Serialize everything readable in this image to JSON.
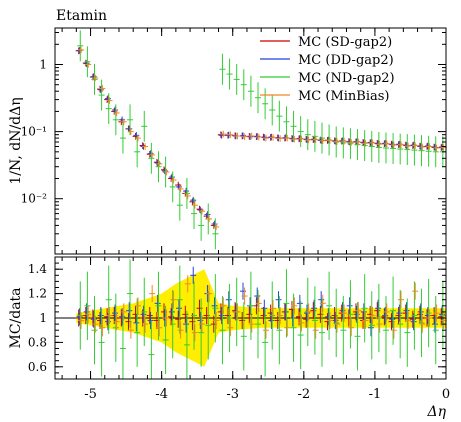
{
  "header": {
    "title": "Etamin"
  },
  "legend": {
    "placement": "top-right",
    "entries": [
      {
        "label": "MC (SD-gap2)",
        "color": "#cc0000"
      },
      {
        "label": "MC (DD-gap2)",
        "color": "#2244dd"
      },
      {
        "label": "MC (ND-gap2)",
        "color": "#33cc33"
      },
      {
        "label": "MC (MinBias)",
        "color": "#ee8822"
      }
    ]
  },
  "chart_data": [
    {
      "type": "scatter",
      "ylabel": "1/N, dN/dΔη",
      "yscale": "log",
      "xlim": [
        -5.5,
        0
      ],
      "ylim": [
        0.0015,
        3.5
      ],
      "y_ticks": [
        {
          "value": 1,
          "label": "1"
        },
        {
          "value": 0.1,
          "label": "10⁻¹"
        },
        {
          "value": 0.01,
          "label": "10⁻²"
        }
      ],
      "series": [
        {
          "name": "MC (SD-gap2)",
          "color": "#cc0000",
          "x": [
            -5.15,
            -5.05,
            -4.95,
            -4.85,
            -4.75,
            -4.65,
            -4.55,
            -4.45,
            -4.35,
            -4.25,
            -4.15,
            -4.05,
            -3.95,
            -3.85,
            -3.75,
            -3.65,
            -3.55,
            -3.45,
            -3.35,
            -3.25,
            -3.15,
            -3.05,
            -2.95,
            -2.85,
            -2.75,
            -2.65,
            -2.55,
            -2.45,
            -2.35,
            -2.25,
            -2.15,
            -2.05,
            -1.95,
            -1.85,
            -1.75,
            -1.65,
            -1.55,
            -1.45,
            -1.35,
            -1.25,
            -1.15,
            -1.05,
            -0.95,
            -0.85,
            -0.75,
            -0.65,
            -0.55,
            -0.45,
            -0.35,
            -0.25,
            -0.15,
            -0.05
          ],
          "y": [
            1.6,
            1.05,
            0.65,
            0.43,
            0.3,
            0.2,
            0.14,
            0.11,
            0.085,
            0.062,
            0.046,
            0.035,
            0.027,
            0.02,
            0.016,
            0.012,
            0.009,
            0.007,
            0.0055,
            0.004,
            0.09,
            0.088,
            0.087,
            0.086,
            0.085,
            0.084,
            0.083,
            0.082,
            0.081,
            0.08,
            0.079,
            0.078,
            0.077,
            0.076,
            0.075,
            0.074,
            0.073,
            0.072,
            0.071,
            0.07,
            0.069,
            0.068,
            0.067,
            0.066,
            0.065,
            0.064,
            0.063,
            0.062,
            0.061,
            0.06,
            0.059,
            0.058
          ],
          "ratio": [
            1.0,
            1.02,
            1.0,
            0.98,
            1.01,
            1.02,
            1.0,
            0.97,
            1.03,
            1.0,
            1.02,
            0.98,
            1.05,
            1.01,
            0.99,
            1.03,
            0.97,
            1.08,
            1.02,
            0.95,
            1.05,
            1.02,
            1.06,
            0.98,
            1.03,
            1.1,
            1.02,
            1.04,
            0.98,
            1.05,
            1.07,
            1.01,
            0.99,
            1.06,
            1.03,
            0.97,
            1.02,
            1.04,
            1.0,
            1.05,
            0.98,
            1.03,
            1.06,
            1.01,
            0.97,
            1.02,
            1.04,
            0.99,
            1.03,
            1.0,
            1.02,
            1.01
          ]
        },
        {
          "name": "MC (DD-gap2)",
          "color": "#2244dd",
          "x": [
            -5.15,
            -5.05,
            -4.95,
            -4.85,
            -4.75,
            -4.65,
            -4.55,
            -4.45,
            -4.35,
            -4.25,
            -4.15,
            -4.05,
            -3.95,
            -3.85,
            -3.75,
            -3.65,
            -3.55,
            -3.45,
            -3.35,
            -3.25,
            -3.15,
            -3.05,
            -2.95,
            -2.85,
            -2.75,
            -2.65,
            -2.55,
            -2.45,
            -2.35,
            -2.25,
            -2.15,
            -2.05,
            -1.95,
            -1.85,
            -1.75,
            -1.65,
            -1.55,
            -1.45,
            -1.35,
            -1.25,
            -1.15,
            -1.05,
            -0.95,
            -0.85,
            -0.75,
            -0.65,
            -0.55,
            -0.45,
            -0.35,
            -0.25,
            -0.15,
            -0.05
          ],
          "y": [
            1.62,
            1.03,
            0.66,
            0.42,
            0.31,
            0.21,
            0.15,
            0.11,
            0.088,
            0.06,
            0.047,
            0.034,
            0.026,
            0.021,
            0.015,
            0.013,
            0.0095,
            0.0068,
            0.0058,
            0.0042,
            0.088,
            0.089,
            0.086,
            0.087,
            0.084,
            0.085,
            0.082,
            0.083,
            0.08,
            0.081,
            0.078,
            0.079,
            0.076,
            0.077,
            0.074,
            0.075,
            0.072,
            0.073,
            0.07,
            0.071,
            0.068,
            0.069,
            0.066,
            0.067,
            0.064,
            0.065,
            0.062,
            0.063,
            0.06,
            0.061,
            0.058,
            0.059
          ],
          "ratio": [
            1.01,
            1.05,
            0.99,
            1.02,
            0.97,
            1.04,
            1.01,
            1.06,
            0.96,
            1.03,
            0.98,
            1.12,
            1.0,
            1.05,
            1.08,
            0.95,
            1.35,
            0.98,
            1.2,
            1.1,
            1.02,
            1.15,
            1.05,
            1.22,
            1.1,
            1.18,
            1.08,
            0.98,
            1.15,
            1.05,
            1.0,
            1.12,
            1.04,
            1.08,
            1.15,
            1.01,
            0.98,
            1.06,
            1.1,
            1.03,
            1.05,
            0.92,
            1.08,
            1.02,
            0.99,
            1.04,
            1.06,
            0.97,
            1.05,
            1.02,
            0.95,
            1.03
          ]
        },
        {
          "name": "MC (ND-gap2)",
          "color": "#33cc33",
          "x": [
            -5.15,
            -5.05,
            -4.95,
            -4.85,
            -4.75,
            -4.65,
            -4.55,
            -4.45,
            -4.35,
            -4.25,
            -4.15,
            -4.05,
            -3.95,
            -3.85,
            -3.75,
            -3.65,
            -3.55,
            -3.45,
            -3.35,
            -3.25,
            -3.15,
            -3.05,
            -2.95,
            -2.85,
            -2.75,
            -2.65,
            -2.55,
            -2.45,
            -2.35,
            -2.25,
            -2.15,
            -2.05,
            -1.95,
            -1.85,
            -1.75,
            -1.65,
            -1.55,
            -1.45,
            -1.35,
            -1.25,
            -1.15,
            -1.05,
            -0.95,
            -0.85,
            -0.75,
            -0.65,
            -0.55,
            -0.45,
            -0.35,
            -0.25,
            -0.15,
            -0.05
          ],
          "y": [
            1.9,
            1.1,
            0.6,
            0.35,
            0.22,
            0.15,
            0.08,
            0.15,
            0.05,
            0.12,
            0.04,
            0.03,
            0.025,
            0.015,
            0.008,
            0.012,
            0.006,
            0.004,
            0.005,
            0.003,
            0.85,
            0.72,
            0.6,
            0.5,
            0.4,
            0.32,
            0.26,
            0.21,
            0.17,
            0.14,
            0.12,
            0.1,
            0.09,
            0.085,
            0.08,
            0.075,
            0.07,
            0.068,
            0.066,
            0.064,
            0.062,
            0.06,
            0.058,
            0.057,
            0.056,
            0.055,
            0.054,
            0.053,
            0.052,
            0.051,
            0.05,
            0.05
          ],
          "ratio": [
            1.02,
            1.1,
            0.9,
            0.8,
            1.15,
            0.92,
            0.75,
            1.2,
            0.88,
            1.05,
            0.7,
            1.1,
            0.82,
            0.95,
            1.15,
            0.78,
            1.02,
            0.88,
            0.94,
            1.08,
            0.9,
            1.0,
            1.05,
            0.85,
            1.1,
            0.95,
            0.8,
            1.02,
            0.9,
            1.12,
            0.92,
            0.86,
            1.05,
            0.98,
            0.88,
            1.1,
            0.96,
            0.9,
            1.03,
            0.85,
            1.08,
            0.94,
            1.0,
            0.9,
            1.06,
            0.95,
            0.88,
            1.02,
            0.96,
            1.04,
            0.9,
            1.02
          ]
        },
        {
          "name": "MC (MinBias)",
          "color": "#ee8822",
          "x": [
            -5.15,
            -5.05,
            -4.95,
            -4.85,
            -4.75,
            -4.65,
            -4.55,
            -4.45,
            -4.35,
            -4.25,
            -4.15,
            -4.05,
            -3.95,
            -3.85,
            -3.75,
            -3.65,
            -3.55,
            -3.45,
            -3.35,
            -3.25,
            -3.15,
            -3.05,
            -2.95,
            -2.85,
            -2.75,
            -2.65,
            -2.55,
            -2.45,
            -2.35,
            -2.25,
            -2.15,
            -2.05,
            -1.95,
            -1.85,
            -1.75,
            -1.65,
            -1.55,
            -1.45,
            -1.35,
            -1.25,
            -1.15,
            -1.05,
            -0.95,
            -0.85,
            -0.75,
            -0.65,
            -0.55,
            -0.45,
            -0.35,
            -0.25,
            -0.15,
            -0.05
          ],
          "y": [
            1.65,
            1.0,
            0.63,
            0.44,
            0.29,
            0.19,
            0.14,
            0.1,
            0.08,
            0.06,
            0.045,
            0.033,
            0.025,
            0.019,
            0.014,
            0.011,
            0.008,
            0.0065,
            0.005,
            0.0038,
            0.092,
            0.09,
            0.086,
            0.084,
            0.086,
            0.083,
            0.08,
            0.082,
            0.079,
            0.08,
            0.077,
            0.078,
            0.075,
            0.076,
            0.073,
            0.074,
            0.071,
            0.072,
            0.069,
            0.07,
            0.067,
            0.068,
            0.065,
            0.066,
            0.063,
            0.064,
            0.061,
            0.062,
            0.059,
            0.06,
            0.057,
            0.058
          ],
          "ratio": [
            0.98,
            1.03,
            0.95,
            0.92,
            1.02,
            0.97,
            1.05,
            0.9,
            1.1,
            0.95,
            1.2,
            0.92,
            1.0,
            1.15,
            0.9,
            1.28,
            0.88,
            0.95,
            1.2,
            0.98,
            1.1,
            0.92,
            1.05,
            1.18,
            0.95,
            1.12,
            0.9,
            1.08,
            1.02,
            0.92,
            1.1,
            0.96,
            1.05,
            0.9,
            1.12,
            0.98,
            0.95,
            1.04,
            0.92,
            1.06,
            0.98,
            1.02,
            0.95,
            1.05,
            0.9,
            1.15,
            0.98,
            1.22,
            0.95,
            1.0,
            1.04,
            0.98
          ]
        }
      ]
    },
    {
      "type": "scatter",
      "ylabel": "MC/data",
      "xlabel": "Δη",
      "xlim": [
        -5.5,
        0
      ],
      "ylim": [
        0.5,
        1.5
      ],
      "x_ticks": [
        {
          "value": -5,
          "label": "-5"
        },
        {
          "value": -4,
          "label": "-4"
        },
        {
          "value": -3,
          "label": "-3"
        },
        {
          "value": -2,
          "label": "-2"
        },
        {
          "value": -1,
          "label": "-1"
        },
        {
          "value": 0,
          "label": "0"
        }
      ],
      "y_ticks": [
        {
          "value": 1.4,
          "label": "1.4"
        },
        {
          "value": 1.2,
          "label": "1.2"
        },
        {
          "value": 1,
          "label": "1"
        },
        {
          "value": 0.8,
          "label": "0.8"
        },
        {
          "value": 0.6,
          "label": "0.6"
        }
      ],
      "reference_line": 1.0,
      "data_uncertainty_band": {
        "color": "#ffee00",
        "x": [
          -5.2,
          -5.0,
          -4.8,
          -4.6,
          -4.4,
          -4.2,
          -4.0,
          -3.8,
          -3.6,
          -3.4,
          -3.2,
          -3.0,
          -2.8,
          -2.6,
          -2.4,
          -2.2,
          -2.0,
          -1.8,
          -1.6,
          -1.4,
          -1.2,
          -1.0,
          -0.8,
          -0.6,
          -0.4,
          -0.2,
          0.0
        ],
        "half_width": [
          0.04,
          0.06,
          0.08,
          0.1,
          0.12,
          0.16,
          0.2,
          0.28,
          0.34,
          0.4,
          0.12,
          0.1,
          0.09,
          0.08,
          0.08,
          0.08,
          0.08,
          0.08,
          0.08,
          0.08,
          0.08,
          0.08,
          0.08,
          0.08,
          0.08,
          0.08,
          0.08
        ]
      }
    }
  ]
}
